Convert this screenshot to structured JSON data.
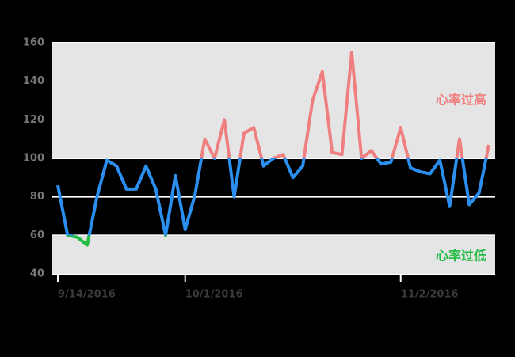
{
  "chart_data": {
    "type": "line",
    "categories": [
      "9/14/2016",
      null,
      null,
      null,
      null,
      null,
      null,
      null,
      null,
      null,
      null,
      null,
      null,
      "10/1/2016",
      null,
      null,
      null,
      null,
      null,
      null,
      null,
      null,
      null,
      null,
      null,
      null,
      null,
      null,
      null,
      null,
      null,
      null,
      null,
      null,
      null,
      "11/2/2016",
      null,
      null,
      null,
      null,
      null,
      null,
      null,
      null,
      null
    ],
    "values": [
      86,
      60,
      59,
      55,
      80,
      99,
      96,
      84,
      84,
      96,
      84,
      60,
      91,
      63,
      81,
      110,
      100,
      120,
      80,
      113,
      116,
      96,
      100,
      102,
      90,
      96,
      130,
      145,
      103,
      102,
      155,
      100,
      104,
      97,
      98,
      116,
      95,
      93,
      92,
      99,
      75,
      110,
      76,
      82,
      107
    ],
    "ylim": [
      40,
      160
    ],
    "yticks": [
      40,
      60,
      80,
      100,
      120,
      140,
      160
    ],
    "grid": true,
    "high": 100,
    "low": 60,
    "colors": {
      "high": "#f08080",
      "normal": "#2b8ff0",
      "low": "#22bb44"
    },
    "annotations": [
      {
        "text": "心率过高",
        "y": 130
      },
      {
        "text": "心率过低",
        "y": 49
      }
    ]
  }
}
